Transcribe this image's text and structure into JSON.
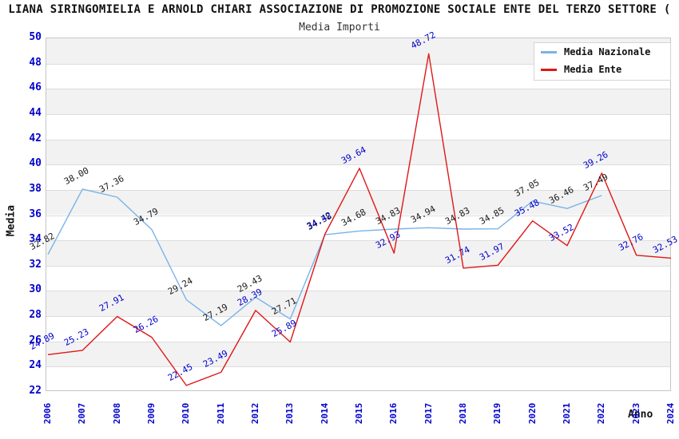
{
  "header": {
    "title": "LIANA SIRINGOMIELIA E ARNOLD CHIARI ASSOCIAZIONE DI PROMOZIONE SOCIALE ENTE DEL TERZO SETTORE (",
    "subtitle": "Media Importi"
  },
  "axes": {
    "y_label": "Media",
    "x_label": "Anno"
  },
  "legend": [
    {
      "label": "Media Nazionale",
      "color": "#79b3e7"
    },
    {
      "label": "Media Ente",
      "color": "#e01717"
    }
  ],
  "chart_data": {
    "type": "line",
    "title": "Media Importi",
    "xlabel": "Anno",
    "ylabel": "Media",
    "ylim": [
      22,
      50
    ],
    "y_tick_step": 2,
    "grid": "horizontal-bands",
    "legend_position": "top-right",
    "x": [
      2006,
      2007,
      2008,
      2009,
      2010,
      2011,
      2012,
      2013,
      2014,
      2015,
      2016,
      2017,
      2018,
      2019,
      2020,
      2021,
      2022,
      2023,
      2024
    ],
    "series": [
      {
        "name": "Media Nazionale",
        "color": "#79b3e7",
        "label_color": "#1a1a1a",
        "values": [
          32.82,
          38.0,
          37.36,
          34.79,
          29.24,
          27.19,
          29.43,
          27.71,
          34.38,
          34.68,
          34.83,
          34.94,
          34.83,
          34.85,
          37.05,
          36.46,
          37.49,
          null,
          null
        ]
      },
      {
        "name": "Media Ente",
        "color": "#e01717",
        "label_color": "#0000cd",
        "values": [
          24.89,
          25.23,
          27.91,
          26.26,
          22.45,
          23.49,
          28.39,
          25.89,
          34.42,
          39.64,
          32.93,
          48.72,
          31.74,
          31.97,
          35.48,
          33.52,
          39.26,
          32.76,
          32.53
        ]
      }
    ]
  }
}
